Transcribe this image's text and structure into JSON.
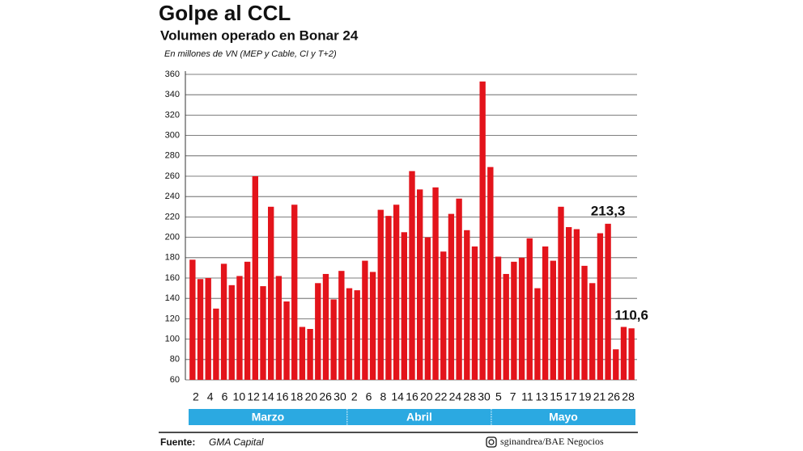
{
  "chart_data": {
    "type": "bar",
    "title": "Golpe al CCL",
    "subtitle": "Volumen operado en Bonar 24",
    "unit_note": "En millones de VN (MEP y Cable, CI y T+2)",
    "values": [
      178,
      159,
      160,
      130,
      174,
      153,
      162,
      176,
      260,
      152,
      230,
      162,
      137,
      232,
      112,
      110,
      155,
      164,
      139,
      167,
      150,
      148,
      177,
      166,
      227,
      221,
      232,
      205,
      265,
      247,
      200,
      249,
      186,
      223,
      238,
      207,
      191,
      353,
      269,
      181,
      164,
      176,
      180,
      199,
      150,
      191,
      177,
      230,
      210,
      208,
      172,
      155,
      204,
      213.3,
      90,
      112,
      110.6
    ],
    "value_labels": [
      null,
      null,
      null,
      null,
      null,
      null,
      null,
      null,
      null,
      null,
      null,
      null,
      null,
      null,
      null,
      null,
      null,
      null,
      null,
      null,
      null,
      null,
      null,
      null,
      null,
      null,
      null,
      null,
      null,
      null,
      null,
      null,
      null,
      null,
      null,
      null,
      null,
      null,
      null,
      null,
      null,
      null,
      null,
      null,
      null,
      null,
      null,
      null,
      null,
      null,
      null,
      null,
      null,
      "213,3",
      null,
      null,
      "110,6"
    ],
    "color": "#e3141b",
    "months": [
      {
        "name": "Marzo",
        "labels": [
          "2",
          "4",
          "6",
          "10",
          "12",
          "14",
          "16",
          "18",
          "20",
          "26",
          "30"
        ]
      },
      {
        "name": "Abril",
        "labels": [
          "2",
          "6",
          "8",
          "14",
          "16",
          "20",
          "22",
          "24",
          "28",
          "30"
        ]
      },
      {
        "name": "Mayo",
        "labels": [
          "5",
          "7",
          "11",
          "13",
          "15",
          "17",
          "19",
          "21",
          "26",
          "28"
        ]
      }
    ],
    "ylim": [
      60,
      360
    ],
    "yticks": [
      60,
      80,
      100,
      120,
      140,
      160,
      180,
      200,
      220,
      240,
      260,
      280,
      300,
      320,
      340,
      360
    ],
    "grid": true,
    "source_label": "Fuente:",
    "source": "GMA Capital",
    "credit": "sginandrea/BAE Negocios"
  }
}
